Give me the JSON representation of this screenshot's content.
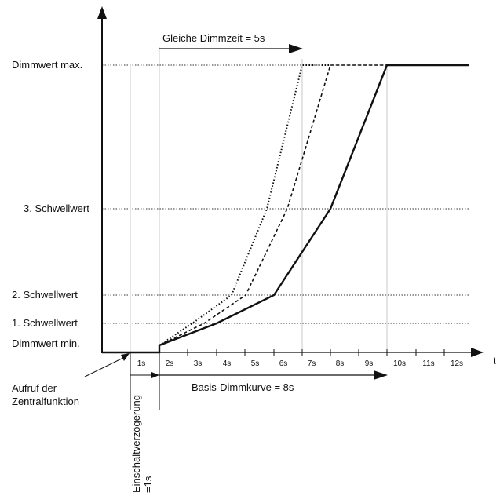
{
  "levels": {
    "max": "Dimmwert max.",
    "s3": "3. Schwellwert",
    "s2": "2. Schwellwert",
    "s1": "1. Schwellwert",
    "min": "Dimmwert min."
  },
  "time_axis_label": "t",
  "ticks": [
    "1s",
    "2s",
    "3s",
    "4s",
    "5s",
    "6s",
    "7s",
    "8s",
    "9s",
    "10s",
    "11s",
    "12s"
  ],
  "annotations": {
    "equal_dim_time": "Gleiche Dimmzeit = 5s",
    "base_curve": "Basis-Dimmkurve = 8s",
    "central_call_line1": "Aufruf der",
    "central_call_line2": "Zentralfunktion",
    "switch_on_delay_line1": "Einschaltverzögerung",
    "switch_on_delay_line2": "=1s"
  }
}
